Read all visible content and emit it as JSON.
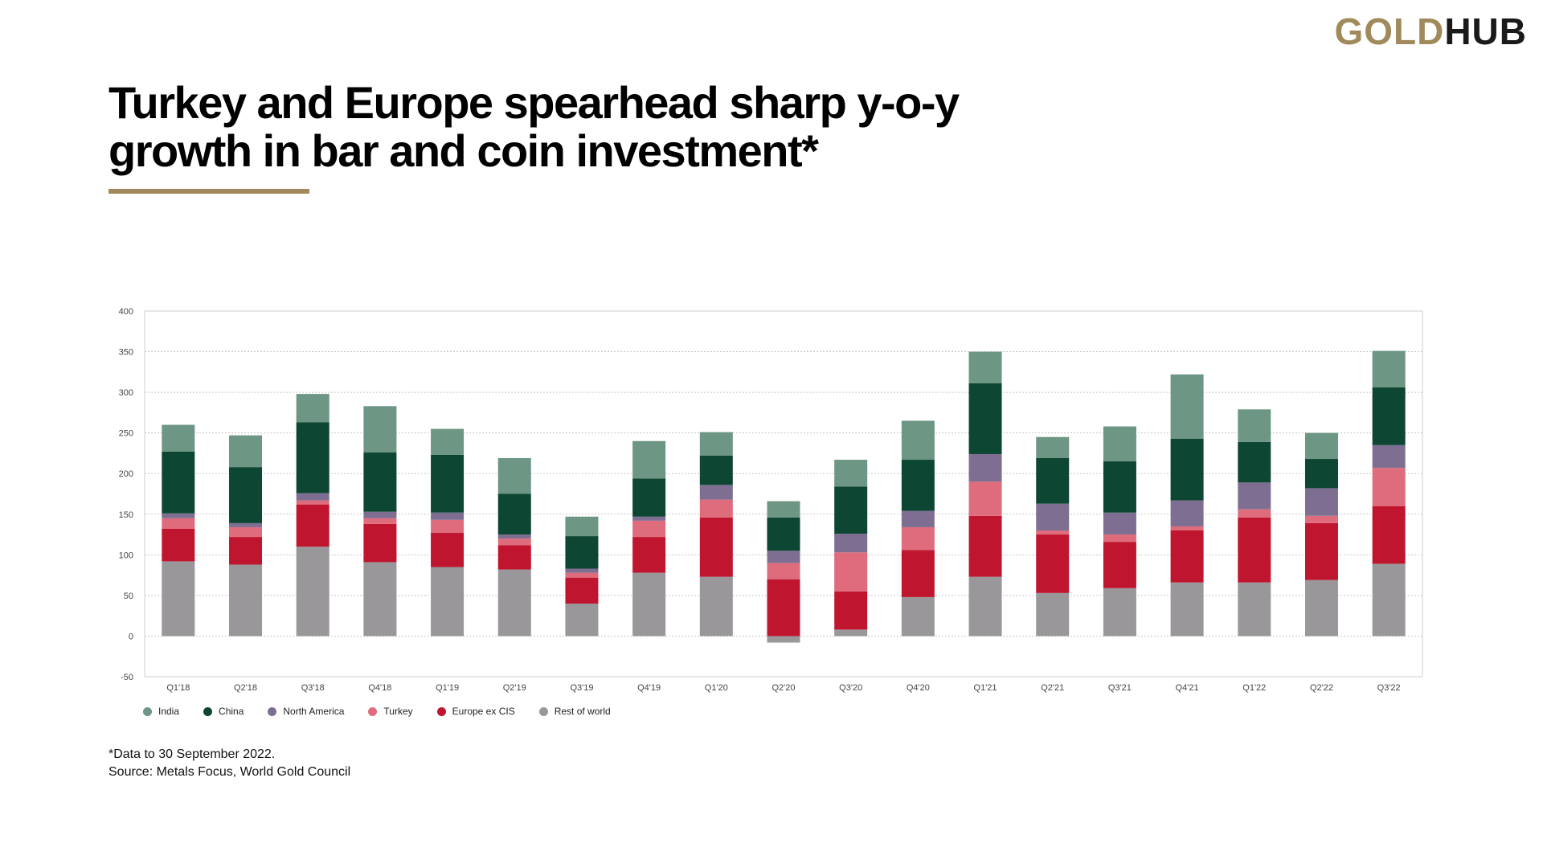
{
  "brand": {
    "gold": "GOLD",
    "hub": "HUB"
  },
  "title": "Turkey and Europe spearhead sharp y-o-y growth in bar and coin investment*",
  "footnote": "*Data to 30 September 2022.",
  "source": "Source: Metals Focus, World Gold Council",
  "colors": {
    "accent": "#a08a5b"
  },
  "chart_data": {
    "type": "bar",
    "stacked": true,
    "title": "",
    "xlabel": "",
    "ylabel": "",
    "ylim": [
      -50,
      400
    ],
    "yticks": [
      400,
      350,
      300,
      250,
      200,
      150,
      100,
      50,
      0,
      -50
    ],
    "grid": true,
    "legend_position": "bottom-left",
    "categories": [
      "Q1'18",
      "Q2'18",
      "Q3'18",
      "Q4'18",
      "Q1'19",
      "Q2'19",
      "Q3'19",
      "Q4'19",
      "Q1'20",
      "Q2'20",
      "Q3'20",
      "Q4'20",
      "Q1'21",
      "Q2'21",
      "Q3'21",
      "Q4'21",
      "Q1'22",
      "Q2'22",
      "Q3'22"
    ],
    "series": [
      {
        "name": "Rest of world",
        "color": "#999799",
        "values": [
          92,
          88,
          110,
          91,
          85,
          82,
          40,
          78,
          73,
          -8,
          8,
          48,
          73,
          53,
          59,
          66,
          66,
          69,
          89
        ]
      },
      {
        "name": "Europe ex CIS",
        "color": "#c0152f",
        "values": [
          40,
          34,
          52,
          47,
          42,
          30,
          32,
          44,
          73,
          70,
          47,
          58,
          75,
          72,
          57,
          64,
          80,
          70,
          71
        ]
      },
      {
        "name": "Turkey",
        "color": "#df6c7c",
        "values": [
          13,
          12,
          5,
          7,
          16,
          8,
          6,
          20,
          22,
          20,
          48,
          28,
          42,
          5,
          9,
          5,
          10,
          9,
          47
        ]
      },
      {
        "name": "North America",
        "color": "#7e6f92",
        "values": [
          6,
          5,
          9,
          8,
          9,
          5,
          5,
          5,
          18,
          15,
          23,
          20,
          34,
          33,
          27,
          32,
          33,
          34,
          28
        ]
      },
      {
        "name": "China",
        "color": "#0d4632",
        "values": [
          76,
          69,
          87,
          73,
          71,
          50,
          40,
          47,
          36,
          41,
          58,
          63,
          87,
          56,
          63,
          76,
          50,
          36,
          71
        ]
      },
      {
        "name": "India",
        "color": "#6d9684",
        "values": [
          33,
          39,
          35,
          57,
          32,
          44,
          24,
          46,
          29,
          20,
          33,
          48,
          39,
          26,
          43,
          79,
          40,
          32,
          45
        ]
      }
    ]
  }
}
